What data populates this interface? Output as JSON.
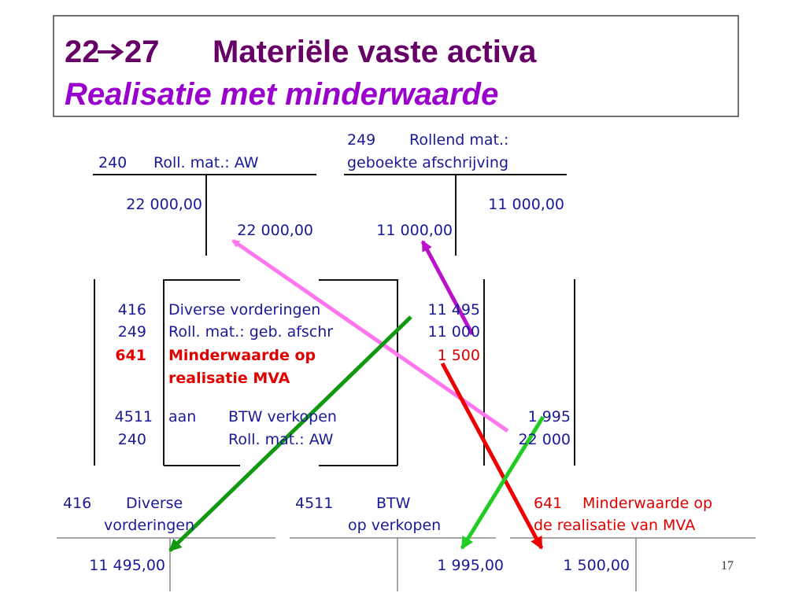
{
  "header": {
    "from": "22",
    "to": "27",
    "title": "Materiële vaste activa",
    "subtitle": "Realisatie met minderwaarde"
  },
  "t_accounts": [
    {
      "number": "240",
      "name": "Roll. mat.: AW",
      "row1": "22 000,00",
      "row2": "22 000,00"
    },
    {
      "number": "249",
      "name": "Rollend mat.:",
      "name2": "geboekte afschrijving",
      "row1": "11 000,00",
      "row2": "11 000,00"
    }
  ],
  "journal": {
    "rows": [
      {
        "account": "416",
        "label": "Diverse vorderingen",
        "amount": "11 495"
      },
      {
        "account": "249",
        "label": "Roll. mat.: geb. afschr",
        "amount": "11 000"
      },
      {
        "account": "641",
        "label": "Minderwaarde op",
        "label2": "realisatie MVA",
        "amount": "1 500"
      },
      {
        "account": "4511",
        "prefix": "aan",
        "label": "BTW verkopen",
        "amount": "1 995"
      },
      {
        "account": "240",
        "label": "Roll. mat.: AW",
        "amount": "22 000"
      }
    ]
  },
  "ledger": [
    {
      "number": "416",
      "name": "Diverse",
      "name2": "vorderingen",
      "amount": "11 495,00"
    },
    {
      "number": "4511",
      "name": "BTW",
      "name2": "op verkopen",
      "amount": "1 995,00"
    },
    {
      "number": "641",
      "name": "Minderwaarde op",
      "name2": "de realisatie van MVA",
      "amount": "1 500,00"
    }
  ],
  "page_number": "17"
}
